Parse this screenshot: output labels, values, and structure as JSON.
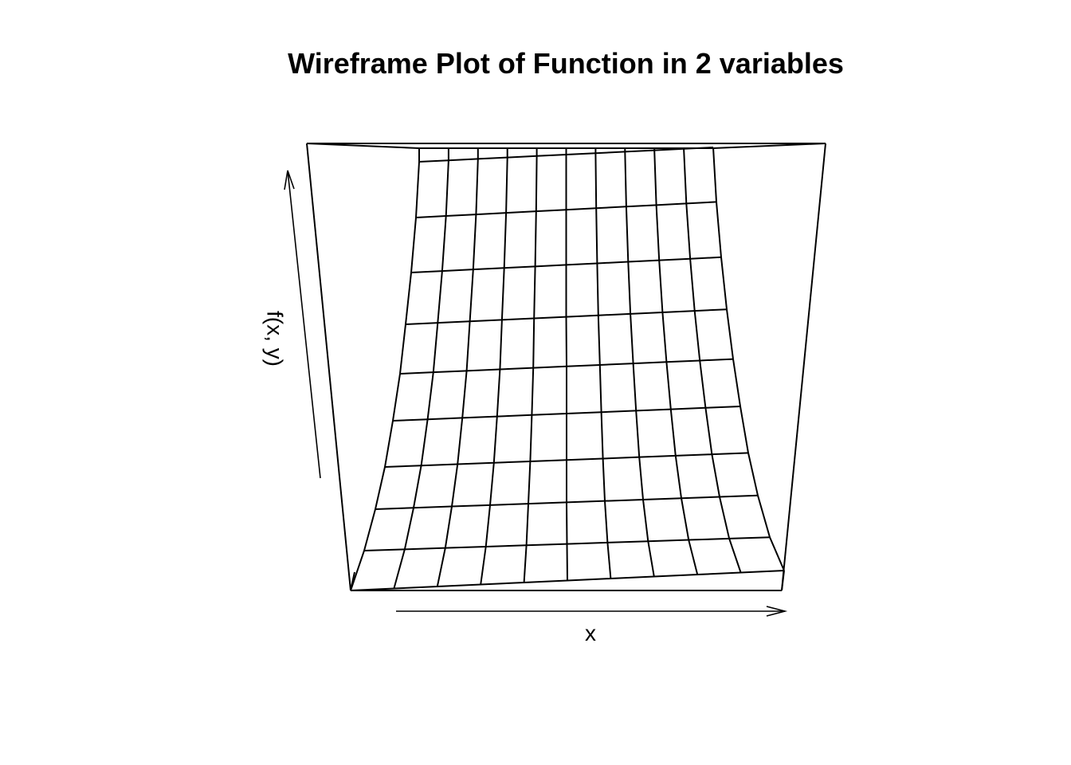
{
  "chart_data": {
    "type": "wireframe",
    "title": "Wireframe Plot of Function in 2 variables",
    "xlabel": "x",
    "ylabel": "",
    "zlabel": "f(x, y)",
    "grid_rows": 9,
    "grid_cols": 10,
    "colors": {
      "line": "#000000",
      "background": "#ffffff"
    }
  }
}
